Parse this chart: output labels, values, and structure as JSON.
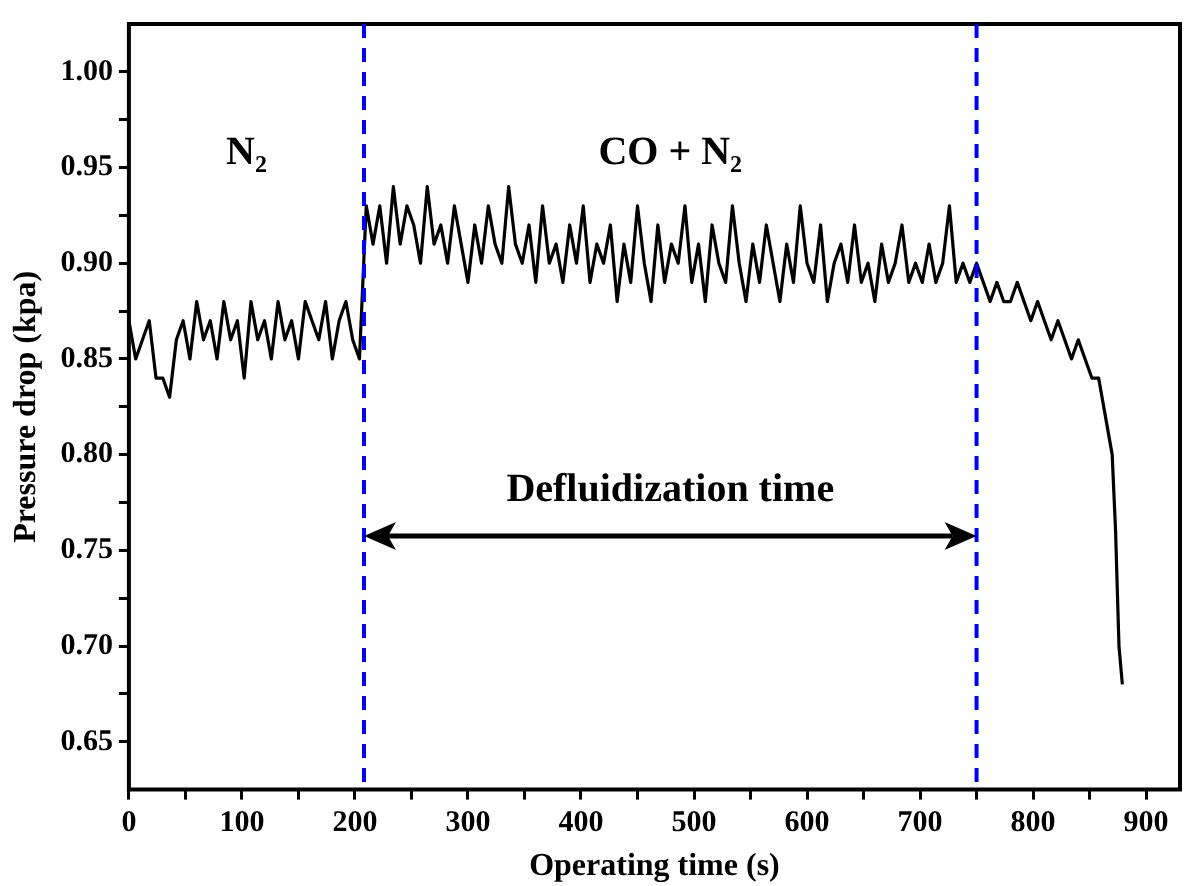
{
  "chart_data": {
    "type": "line",
    "xlabel": "Operating time (s)",
    "ylabel": "Pressure drop (kpa)",
    "x": [
      0,
      6,
      12,
      18,
      24,
      30,
      36,
      42,
      48,
      54,
      60,
      66,
      72,
      78,
      84,
      90,
      96,
      102,
      108,
      114,
      120,
      126,
      132,
      138,
      144,
      150,
      156,
      162,
      168,
      174,
      180,
      186,
      192,
      198,
      204,
      210,
      216,
      222,
      228,
      234,
      240,
      246,
      252,
      258,
      264,
      270,
      276,
      282,
      288,
      294,
      300,
      306,
      312,
      318,
      324,
      330,
      336,
      342,
      348,
      354,
      360,
      366,
      372,
      378,
      384,
      390,
      396,
      402,
      408,
      414,
      420,
      426,
      432,
      438,
      444,
      450,
      456,
      462,
      468,
      474,
      480,
      486,
      492,
      498,
      504,
      510,
      516,
      522,
      528,
      534,
      540,
      546,
      552,
      558,
      564,
      570,
      576,
      582,
      588,
      594,
      600,
      606,
      612,
      618,
      624,
      630,
      636,
      642,
      648,
      654,
      660,
      666,
      672,
      678,
      684,
      690,
      696,
      702,
      708,
      714,
      720,
      726,
      732,
      738,
      744,
      750,
      756,
      762,
      768,
      774,
      780,
      786,
      792,
      798,
      804,
      810,
      816,
      822,
      828,
      834,
      840,
      846,
      852,
      858,
      864,
      870,
      873,
      876,
      879
    ],
    "series": [
      {
        "color": "#000000",
        "values": [
          0.87,
          0.85,
          0.86,
          0.87,
          0.84,
          0.84,
          0.83,
          0.86,
          0.87,
          0.85,
          0.88,
          0.86,
          0.87,
          0.85,
          0.88,
          0.86,
          0.87,
          0.84,
          0.88,
          0.86,
          0.87,
          0.85,
          0.88,
          0.86,
          0.87,
          0.85,
          0.88,
          0.87,
          0.86,
          0.88,
          0.85,
          0.87,
          0.88,
          0.86,
          0.85,
          0.93,
          0.91,
          0.93,
          0.9,
          0.94,
          0.91,
          0.93,
          0.92,
          0.9,
          0.94,
          0.91,
          0.92,
          0.9,
          0.93,
          0.91,
          0.89,
          0.92,
          0.9,
          0.93,
          0.91,
          0.9,
          0.94,
          0.91,
          0.9,
          0.92,
          0.89,
          0.93,
          0.9,
          0.91,
          0.89,
          0.92,
          0.9,
          0.93,
          0.89,
          0.91,
          0.9,
          0.92,
          0.88,
          0.91,
          0.89,
          0.93,
          0.9,
          0.88,
          0.92,
          0.89,
          0.91,
          0.9,
          0.93,
          0.89,
          0.91,
          0.88,
          0.92,
          0.9,
          0.89,
          0.93,
          0.9,
          0.88,
          0.91,
          0.89,
          0.92,
          0.9,
          0.88,
          0.91,
          0.89,
          0.93,
          0.9,
          0.89,
          0.92,
          0.88,
          0.9,
          0.91,
          0.89,
          0.92,
          0.89,
          0.9,
          0.88,
          0.91,
          0.89,
          0.9,
          0.92,
          0.89,
          0.9,
          0.89,
          0.91,
          0.89,
          0.9,
          0.93,
          0.89,
          0.9,
          0.89,
          0.9,
          0.89,
          0.88,
          0.89,
          0.88,
          0.88,
          0.89,
          0.88,
          0.87,
          0.88,
          0.87,
          0.86,
          0.87,
          0.86,
          0.85,
          0.86,
          0.85,
          0.84,
          0.84,
          0.82,
          0.8,
          0.76,
          0.7,
          0.68
        ]
      }
    ],
    "xlim": [
      0,
      930
    ],
    "ylim": [
      0.625,
      1.025
    ],
    "xticks": [
      0,
      {
        "value": 50,
        "label": null
      },
      100,
      {
        "value": 150,
        "label": null
      },
      200,
      {
        "value": 250,
        "label": null
      },
      300,
      {
        "value": 350,
        "label": null
      },
      400,
      {
        "value": 450,
        "label": null
      },
      500,
      {
        "value": 550,
        "label": null
      },
      600,
      {
        "value": 650,
        "label": null
      },
      700,
      {
        "value": 750,
        "label": null
      },
      800,
      {
        "value": 850,
        "label": null
      },
      900
    ],
    "yticks": [
      0.65,
      {
        "value": 0.675,
        "label": null
      },
      {
        "value": 0.7,
        "label": "0.70"
      },
      {
        "value": 0.725,
        "label": null
      },
      0.75,
      {
        "value": 0.775,
        "label": null
      },
      {
        "value": 0.8,
        "label": "0.80"
      },
      {
        "value": 0.825,
        "label": null
      },
      0.85,
      {
        "value": 0.875,
        "label": null
      },
      {
        "value": 0.9,
        "label": "0.90"
      },
      {
        "value": 0.925,
        "label": null
      },
      0.95,
      {
        "value": 0.975,
        "label": null
      },
      {
        "value": 1,
        "label": "1.00"
      }
    ],
    "ref_lines": [
      {
        "axis": "x",
        "value": 208,
        "color": "#0000ff",
        "line_style": "dashed"
      },
      {
        "axis": "x",
        "value": 750,
        "color": "#0000ff",
        "line_style": "dashed"
      }
    ],
    "annotations": [
      "N₂",
      "CO + N₂",
      "Defluidization time"
    ],
    "grid": false,
    "legend": false,
    "marker": "none",
    "line_style": "solid"
  }
}
